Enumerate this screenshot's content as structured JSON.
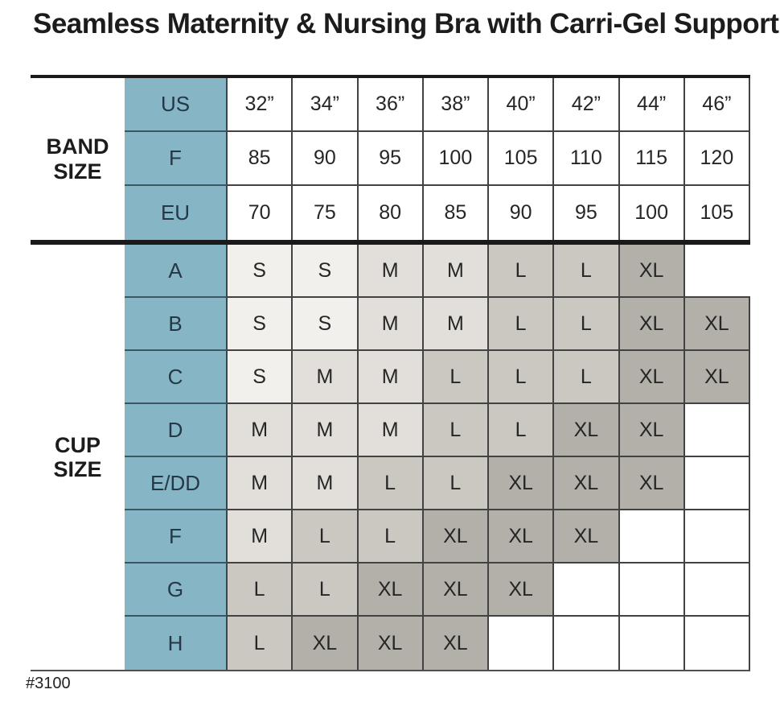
{
  "title": "Seamless Maternity & Nursing Bra with Carri-Gel Support",
  "footnote": "#3100",
  "band_section": {
    "label": "BAND SIZE",
    "rows": [
      {
        "label": "US",
        "values": [
          "32”",
          "34”",
          "36”",
          "38”",
          "40”",
          "42”",
          "44”",
          "46”"
        ]
      },
      {
        "label": "F",
        "values": [
          "85",
          "90",
          "95",
          "100",
          "105",
          "110",
          "115",
          "120"
        ]
      },
      {
        "label": "EU",
        "values": [
          "70",
          "75",
          "80",
          "85",
          "90",
          "95",
          "100",
          "105"
        ]
      }
    ]
  },
  "cup_section": {
    "label": "CUP SIZE",
    "rows": [
      {
        "label": "A",
        "values": [
          "S",
          "S",
          "M",
          "M",
          "L",
          "L",
          "XL",
          ""
        ]
      },
      {
        "label": "B",
        "values": [
          "S",
          "S",
          "M",
          "M",
          "L",
          "L",
          "XL",
          "XL"
        ]
      },
      {
        "label": "C",
        "values": [
          "S",
          "M",
          "M",
          "L",
          "L",
          "L",
          "XL",
          "XL"
        ]
      },
      {
        "label": "D",
        "values": [
          "M",
          "M",
          "M",
          "L",
          "L",
          "XL",
          "XL",
          ""
        ]
      },
      {
        "label": "E/DD",
        "values": [
          "M",
          "M",
          "L",
          "L",
          "XL",
          "XL",
          "XL",
          ""
        ]
      },
      {
        "label": "F",
        "values": [
          "M",
          "L",
          "L",
          "XL",
          "XL",
          "XL",
          "",
          ""
        ]
      },
      {
        "label": "G",
        "values": [
          "L",
          "L",
          "XL",
          "XL",
          "XL",
          "",
          "",
          ""
        ]
      },
      {
        "label": "H",
        "values": [
          "L",
          "XL",
          "XL",
          "XL",
          "",
          "",
          "",
          ""
        ]
      }
    ]
  },
  "colors": {
    "header_blue": "#86b5c6",
    "header_blue_text": "#243845",
    "blue_row_line": "#3a5763",
    "size_S": "#f2f0ec",
    "size_M": "#e2dfda",
    "size_L": "#cbc8c2",
    "size_XL": "#b3b0aa",
    "blank_cell": "#ffffff",
    "border_thin": "#424242",
    "border_thick": "#1a1a1a"
  },
  "chart_data": {
    "type": "table",
    "title": "Seamless Maternity & Nursing Bra with Carri-Gel Support",
    "band_columns_us": [
      "32”",
      "34”",
      "36”",
      "38”",
      "40”",
      "42”",
      "44”",
      "46”"
    ],
    "band_rows": {
      "US": [
        "32”",
        "34”",
        "36”",
        "38”",
        "40”",
        "42”",
        "44”",
        "46”"
      ],
      "F": [
        "85",
        "90",
        "95",
        "100",
        "105",
        "110",
        "115",
        "120"
      ],
      "EU": [
        "70",
        "75",
        "80",
        "85",
        "90",
        "95",
        "100",
        "105"
      ]
    },
    "cup_rows": {
      "A": [
        "S",
        "S",
        "M",
        "M",
        "L",
        "L",
        "XL",
        ""
      ],
      "B": [
        "S",
        "S",
        "M",
        "M",
        "L",
        "L",
        "XL",
        "XL"
      ],
      "C": [
        "S",
        "M",
        "M",
        "L",
        "L",
        "L",
        "XL",
        "XL"
      ],
      "D": [
        "M",
        "M",
        "M",
        "L",
        "L",
        "XL",
        "XL",
        ""
      ],
      "E/DD": [
        "M",
        "M",
        "L",
        "L",
        "XL",
        "XL",
        "XL",
        ""
      ],
      "F": [
        "M",
        "L",
        "L",
        "XL",
        "XL",
        "XL",
        "",
        ""
      ],
      "G": [
        "L",
        "L",
        "XL",
        "XL",
        "XL",
        "",
        "",
        ""
      ],
      "H": [
        "L",
        "XL",
        "XL",
        "XL",
        "",
        "",
        "",
        ""
      ]
    },
    "style_number": "#3100"
  }
}
